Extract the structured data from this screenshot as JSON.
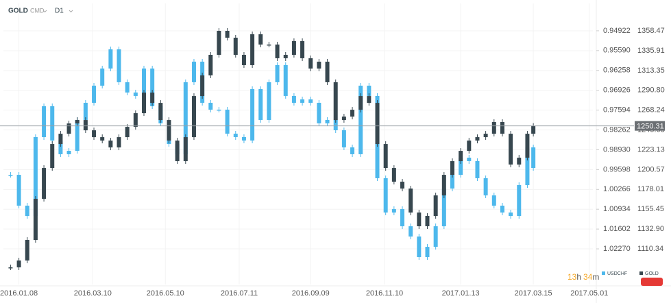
{
  "header": {
    "symbol": "GOLD",
    "market": "CMD",
    "interval": "D1"
  },
  "chart_data": {
    "type": "candlestick",
    "x": [
      "2016.01.01",
      "2016.01.08",
      "2016.01.15",
      "2016.01.22",
      "2016.01.29",
      "2016.02.05",
      "2016.02.12",
      "2016.02.19",
      "2016.02.26",
      "2016.03.04",
      "2016.03.11",
      "2016.03.18",
      "2016.03.25",
      "2016.04.01",
      "2016.04.08",
      "2016.04.15",
      "2016.04.22",
      "2016.04.29",
      "2016.05.06",
      "2016.05.13",
      "2016.05.20",
      "2016.05.27",
      "2016.06.03",
      "2016.06.10",
      "2016.06.17",
      "2016.06.24",
      "2016.07.01",
      "2016.07.08",
      "2016.07.15",
      "2016.07.22",
      "2016.07.29",
      "2016.08.05",
      "2016.08.12",
      "2016.08.19",
      "2016.08.26",
      "2016.09.02",
      "2016.09.09",
      "2016.09.16",
      "2016.09.23",
      "2016.09.30",
      "2016.10.07",
      "2016.10.14",
      "2016.10.21",
      "2016.10.28",
      "2016.11.04",
      "2016.11.11",
      "2016.11.18",
      "2016.11.25",
      "2016.12.02",
      "2016.12.09",
      "2016.12.16",
      "2016.12.23",
      "2016.12.30",
      "2017.01.06",
      "2017.01.13",
      "2017.01.20",
      "2017.01.27",
      "2017.02.03",
      "2017.02.10",
      "2017.02.17",
      "2017.02.24",
      "2017.03.03",
      "2017.03.10",
      "2017.03.15"
    ],
    "xlim": [
      "2015.12.26",
      "2017.05.04"
    ],
    "xticks": [
      "2016.01.08",
      "2016.03.10",
      "2016.05.10",
      "2016.07.11",
      "2016.09.09",
      "2016.11.10",
      "2017.01.13",
      "2017.03.15",
      "2017.05.01"
    ],
    "ylim": [
      1069.8,
      1389.7
    ],
    "yticks": [
      1358.47,
      1335.91,
      1313.35,
      {
        "value": 1290.8,
        "label": "1290.80"
      },
      1268.24,
      1245.68,
      1223.13,
      1200.57,
      1178.01,
      1155.45,
      {
        "value": 1132.9,
        "label": "1132.90"
      },
      1110.34
    ],
    "y2lim": [
      1.0347,
      0.94
    ],
    "y2ticks": [
      0.94922,
      {
        "value": 0.9559,
        "label": "0.95590"
      },
      0.96258,
      0.96926,
      0.97594,
      0.98262,
      {
        "value": 0.9893,
        "label": "0.98930"
      },
      0.99598,
      1.00266,
      1.00934,
      1.01602,
      {
        "value": 1.0227,
        "label": "1.02270"
      }
    ],
    "grid": true,
    "series": [
      {
        "name": "USDCHF",
        "color": "#4db8ec",
        "axis": "y2",
        "values": [
          0.99775,
          1.00814,
          1.01161,
          0.98504,
          0.97464,
          0.98619,
          0.99081,
          0.98966,
          0.97926,
          0.97348,
          0.96771,
          0.96193,
          0.95546,
          0.96655,
          0.97002,
          0.97117,
          0.96193,
          0.97464,
          0.98041,
          0.98735,
          0.99081,
          0.96655,
          0.95962,
          0.97348,
          0.97579,
          0.97579,
          0.98388,
          0.98504,
          0.98619,
          0.96886,
          0.97926,
          0.96655,
          0.96077,
          0.97117,
          0.97348,
          0.97233,
          0.97348,
          0.98041,
          0.97926,
          0.98273,
          0.9885,
          0.99081,
          0.96771,
          0.97117,
          0.9989,
          1.01045,
          1.0093,
          1.01508,
          1.01854,
          1.02547,
          1.02201,
          1.01508,
          1.00237,
          0.99775,
          0.99197,
          0.99312,
          0.9989,
          1.00468,
          1.00814,
          1.01045,
          1.01161,
          1.00121,
          0.9885,
          0.99544
        ]
      },
      {
        "name": "GOLD",
        "color": "#37474f",
        "values": [
          1089.3,
          1097.1,
          1120.5,
          1167.3,
          1202.4,
          1229.7,
          1241.4,
          1253.1,
          1257.0,
          1245.3,
          1237.5,
          1233.6,
          1225.8,
          1237.5,
          1249.2,
          1264.8,
          1288.2,
          1276.5,
          1257.0,
          1233.6,
          1210.2,
          1237.5,
          1284.3,
          1307.8,
          1331.2,
          1358.5,
          1350.7,
          1331.2,
          1319.5,
          1354.6,
          1342.9,
          1342.9,
          1327.3,
          1331.2,
          1346.8,
          1327.3,
          1315.6,
          1323.4,
          1300.0,
          1257.0,
          1260.9,
          1268.7,
          1284.3,
          1276.5,
          1229.7,
          1202.4,
          1186.8,
          1179.0,
          1151.7,
          1136.1,
          1147.8,
          1171.2,
          1194.6,
          1210.2,
          1221.9,
          1233.6,
          1237.5,
          1241.4,
          1254.7,
          1241.4,
          1206.3,
          1214.1,
          1241.4,
          1250.31
        ]
      }
    ]
  },
  "timer": {
    "hours": "13",
    "hours_unit": "h",
    "minutes": "34",
    "minutes_unit": "m"
  }
}
